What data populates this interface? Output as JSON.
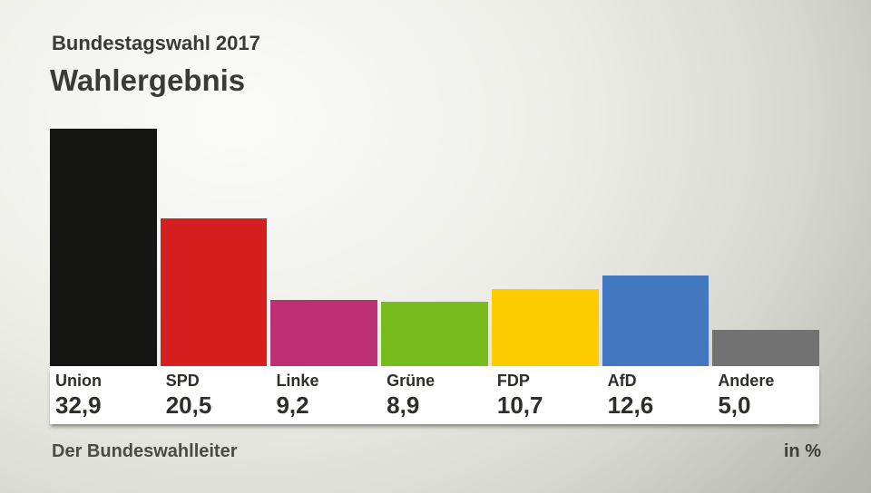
{
  "header": {
    "subtitle": "Bundestagswahl 2017",
    "title": "Wahlergebnis"
  },
  "footer": {
    "source": "Der Bundeswahlleiter",
    "unit": "in %"
  },
  "chart_data": {
    "type": "bar",
    "title": "Wahlergebnis",
    "subtitle": "Bundestagswahl 2017",
    "unit": "%",
    "categories": [
      "Union",
      "SPD",
      "Linke",
      "Grüne",
      "FDP",
      "AfD",
      "Andere"
    ],
    "keys": [
      "union",
      "spd",
      "linke",
      "gruene",
      "fdp",
      "afd",
      "andere"
    ],
    "values": [
      32.9,
      20.5,
      9.2,
      8.9,
      10.7,
      12.6,
      5.0
    ],
    "value_labels": [
      "32,9",
      "20,5",
      "9,2",
      "8,9",
      "10,7",
      "12,6",
      "5,0"
    ],
    "colors": [
      "#151513",
      "#d62020",
      "#be3075",
      "#78bb1e",
      "#ffcc00",
      "#4377c0",
      "#727272"
    ],
    "ylim": [
      0,
      32.9
    ],
    "grid": false,
    "legend": false,
    "source": "Der Bundeswahlleiter",
    "xlabel": "",
    "ylabel": "in %"
  }
}
